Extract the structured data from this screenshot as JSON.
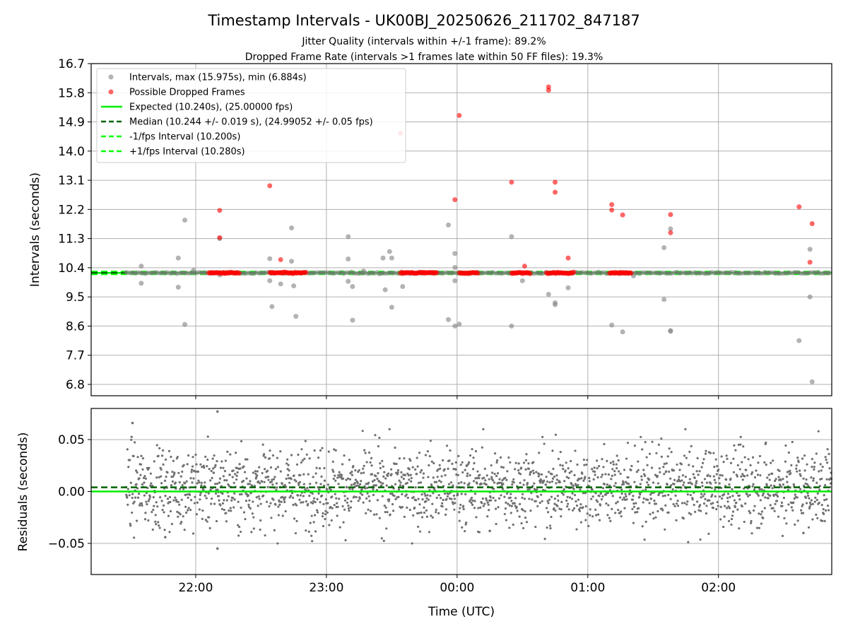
{
  "title": "Timestamp Intervals - UK00BJ_20250626_211702_847187",
  "subtitle_lines": [
    "Jitter Quality (intervals within +/-1 frame): 89.2%",
    "Dropped Frame Rate (intervals >1 frames late within 50 FF files): 19.3%"
  ],
  "colors": {
    "interval_points": "#808080",
    "dropped_points": "#ff0000",
    "expected_line": "#00ee00",
    "median_line": "#006400",
    "band_line": "#00ff00",
    "residual_points": "#707070",
    "grid": "#b0b0b0"
  },
  "chart_data": [
    {
      "type": "scatter",
      "panel": "top",
      "ylabel": "Intervals (seconds)",
      "xlabel": "",
      "x_range": [
        "21:12",
        "02:52"
      ],
      "ylim": [
        6.45,
        16.7
      ],
      "y_ticks": [
        "16.7",
        "15.8",
        "14.9",
        "14.0",
        "13.1",
        "12.2",
        "11.3",
        "10.4",
        "9.5",
        "8.6",
        "7.7",
        "6.8"
      ],
      "x_ticks": [
        "22:00",
        "23:00",
        "00:00",
        "01:00",
        "02:00"
      ],
      "grid": true,
      "legend_position": "upper-left",
      "legend": [
        "Intervals, max (15.975s), min (6.884s)",
        "Possible Dropped Frames",
        "Expected (10.240s), (25.00000 fps)",
        "Median (10.244 +/- 0.019 s), (24.99052 +/- 0.05 fps)",
        "-1/fps Interval (10.200s)",
        "+1/fps Interval (10.280s)"
      ],
      "reference_lines": {
        "expected": 10.24,
        "median": 10.244,
        "minus_1_fps": 10.2,
        "plus_1_fps": 10.28
      },
      "baseline_x_range": [
        "21:28",
        "02:52"
      ],
      "dropped_clusters": [
        {
          "start": "22:06",
          "end": "22:20"
        },
        {
          "start": "22:34",
          "end": "22:51"
        },
        {
          "start": "23:34",
          "end": "23:51"
        },
        {
          "start": "00:01",
          "end": "00:10"
        },
        {
          "start": "00:25",
          "end": "00:34"
        },
        {
          "start": "00:41",
          "end": "00:54"
        },
        {
          "start": "01:10",
          "end": "01:20"
        }
      ],
      "interval_outliers": [
        {
          "x": "21:35",
          "y": 10.45
        },
        {
          "x": "21:35",
          "y": 9.92
        },
        {
          "x": "21:52",
          "y": 10.7
        },
        {
          "x": "21:52",
          "y": 9.8
        },
        {
          "x": "21:55",
          "y": 11.87
        },
        {
          "x": "21:55",
          "y": 8.65
        },
        {
          "x": "21:59",
          "y": 10.32
        },
        {
          "x": "22:11",
          "y": 11.3
        },
        {
          "x": "22:11",
          "y": 10.18
        },
        {
          "x": "22:34",
          "y": 10.68
        },
        {
          "x": "22:34",
          "y": 10.0
        },
        {
          "x": "22:35",
          "y": 9.2
        },
        {
          "x": "22:39",
          "y": 9.9
        },
        {
          "x": "22:44",
          "y": 11.63
        },
        {
          "x": "22:44",
          "y": 10.6
        },
        {
          "x": "22:45",
          "y": 9.84
        },
        {
          "x": "22:46",
          "y": 8.9
        },
        {
          "x": "23:10",
          "y": 11.36
        },
        {
          "x": "23:10",
          "y": 10.67
        },
        {
          "x": "23:10",
          "y": 9.98
        },
        {
          "x": "23:12",
          "y": 8.78
        },
        {
          "x": "23:12",
          "y": 9.82
        },
        {
          "x": "23:17",
          "y": 10.3
        },
        {
          "x": "23:26",
          "y": 10.7
        },
        {
          "x": "23:27",
          "y": 9.72
        },
        {
          "x": "23:29",
          "y": 10.9
        },
        {
          "x": "23:30",
          "y": 10.7
        },
        {
          "x": "23:30",
          "y": 9.18
        },
        {
          "x": "23:35",
          "y": 9.82
        },
        {
          "x": "23:56",
          "y": 11.72
        },
        {
          "x": "23:56",
          "y": 8.8
        },
        {
          "x": "23:59",
          "y": 10.84
        },
        {
          "x": "23:59",
          "y": 10.41
        },
        {
          "x": "23:59",
          "y": 10.0
        },
        {
          "x": "23:59",
          "y": 8.6
        },
        {
          "x": "00:01",
          "y": 8.66
        },
        {
          "x": "00:25",
          "y": 11.36
        },
        {
          "x": "00:25",
          "y": 8.6
        },
        {
          "x": "00:30",
          "y": 10.0
        },
        {
          "x": "00:42",
          "y": 9.58
        },
        {
          "x": "00:45",
          "y": 9.32
        },
        {
          "x": "00:45",
          "y": 9.26
        },
        {
          "x": "00:51",
          "y": 9.78
        },
        {
          "x": "01:11",
          "y": 8.63
        },
        {
          "x": "01:16",
          "y": 8.42
        },
        {
          "x": "01:21",
          "y": 10.15
        },
        {
          "x": "01:35",
          "y": 11.02
        },
        {
          "x": "01:35",
          "y": 9.42
        },
        {
          "x": "01:38",
          "y": 11.6
        },
        {
          "x": "01:38",
          "y": 8.46
        },
        {
          "x": "01:38",
          "y": 8.44
        },
        {
          "x": "02:37",
          "y": 8.15
        },
        {
          "x": "02:42",
          "y": 10.97
        },
        {
          "x": "02:42",
          "y": 9.5
        },
        {
          "x": "02:43",
          "y": 6.88
        }
      ],
      "dropped_outliers": [
        {
          "x": "22:11",
          "y": 12.17
        },
        {
          "x": "22:11",
          "y": 11.33
        },
        {
          "x": "22:34",
          "y": 12.93
        },
        {
          "x": "22:39",
          "y": 10.65
        },
        {
          "x": "23:34",
          "y": 14.55
        },
        {
          "x": "00:01",
          "y": 15.1
        },
        {
          "x": "23:59",
          "y": 12.5
        },
        {
          "x": "00:25",
          "y": 13.04
        },
        {
          "x": "00:31",
          "y": 10.45
        },
        {
          "x": "00:42",
          "y": 15.98
        },
        {
          "x": "00:42",
          "y": 15.88
        },
        {
          "x": "00:45",
          "y": 13.04
        },
        {
          "x": "00:45",
          "y": 12.73
        },
        {
          "x": "00:51",
          "y": 10.7
        },
        {
          "x": "01:11",
          "y": 12.35
        },
        {
          "x": "01:11",
          "y": 12.18
        },
        {
          "x": "01:16",
          "y": 12.03
        },
        {
          "x": "01:38",
          "y": 12.04
        },
        {
          "x": "01:38",
          "y": 11.48
        },
        {
          "x": "02:37",
          "y": 12.28
        },
        {
          "x": "02:43",
          "y": 11.76
        },
        {
          "x": "02:42",
          "y": 10.57
        }
      ]
    },
    {
      "type": "scatter",
      "panel": "bottom",
      "ylabel": "Residuals (seconds)",
      "xlabel": "Time (UTC)",
      "x_range": [
        "21:12",
        "02:52"
      ],
      "ylim": [
        -0.08,
        0.08
      ],
      "y_ticks": [
        "0.05",
        "0.00",
        "−0.05"
      ],
      "x_ticks": [
        "22:00",
        "23:00",
        "00:00",
        "01:00",
        "02:00"
      ],
      "grid": true,
      "reference_lines": {
        "expected": 0.0,
        "median": 0.004
      },
      "residual_distribution": {
        "x_start": "21:28",
        "x_end": "02:52",
        "center": 0.004,
        "spread": 0.019
      },
      "residual_extremes": [
        {
          "x": "22:10",
          "y": 0.077
        },
        {
          "x": "22:10",
          "y": -0.055
        },
        {
          "x": "21:31",
          "y": 0.066
        },
        {
          "x": "21:46",
          "y": -0.044
        },
        {
          "x": "00:15",
          "y": -0.038
        },
        {
          "x": "02:39",
          "y": -0.04
        }
      ]
    }
  ]
}
